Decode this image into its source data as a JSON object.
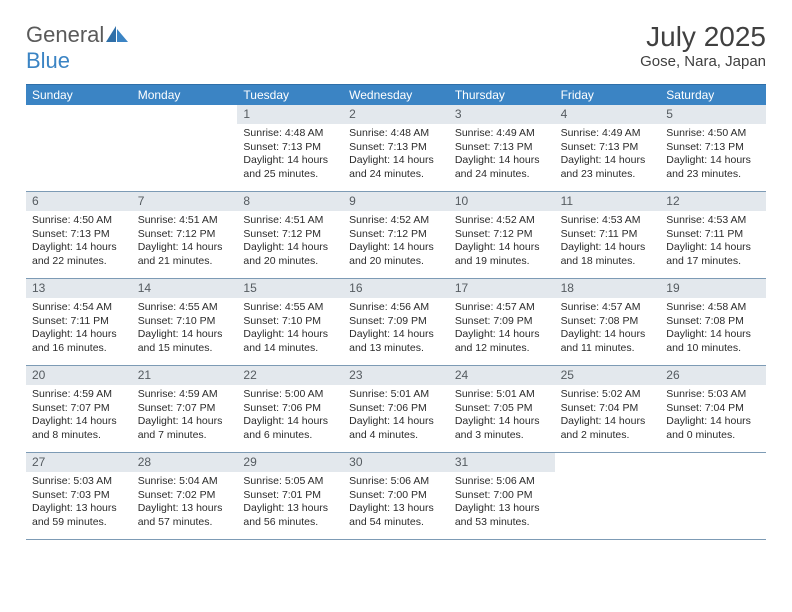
{
  "brand": {
    "part1": "General",
    "part2": "Blue"
  },
  "title": "July 2025",
  "location": "Gose, Nara, Japan",
  "day_headers": [
    "Sunday",
    "Monday",
    "Tuesday",
    "Wednesday",
    "Thursday",
    "Friday",
    "Saturday"
  ],
  "colors": {
    "header_bg": "#3b84c4",
    "header_border": "#2f6fa8",
    "row_divider": "#7d9bb5",
    "daynum_bg": "#e3e8ed",
    "text": "#2b2b2b",
    "title_text": "#404040"
  },
  "labels": {
    "sunrise": "Sunrise: ",
    "sunset": "Sunset: ",
    "daylight": "Daylight: "
  },
  "weeks": [
    [
      null,
      null,
      {
        "n": "1",
        "sunrise": "4:48 AM",
        "sunset": "7:13 PM",
        "daylight": "14 hours and 25 minutes."
      },
      {
        "n": "2",
        "sunrise": "4:48 AM",
        "sunset": "7:13 PM",
        "daylight": "14 hours and 24 minutes."
      },
      {
        "n": "3",
        "sunrise": "4:49 AM",
        "sunset": "7:13 PM",
        "daylight": "14 hours and 24 minutes."
      },
      {
        "n": "4",
        "sunrise": "4:49 AM",
        "sunset": "7:13 PM",
        "daylight": "14 hours and 23 minutes."
      },
      {
        "n": "5",
        "sunrise": "4:50 AM",
        "sunset": "7:13 PM",
        "daylight": "14 hours and 23 minutes."
      }
    ],
    [
      {
        "n": "6",
        "sunrise": "4:50 AM",
        "sunset": "7:13 PM",
        "daylight": "14 hours and 22 minutes."
      },
      {
        "n": "7",
        "sunrise": "4:51 AM",
        "sunset": "7:12 PM",
        "daylight": "14 hours and 21 minutes."
      },
      {
        "n": "8",
        "sunrise": "4:51 AM",
        "sunset": "7:12 PM",
        "daylight": "14 hours and 20 minutes."
      },
      {
        "n": "9",
        "sunrise": "4:52 AM",
        "sunset": "7:12 PM",
        "daylight": "14 hours and 20 minutes."
      },
      {
        "n": "10",
        "sunrise": "4:52 AM",
        "sunset": "7:12 PM",
        "daylight": "14 hours and 19 minutes."
      },
      {
        "n": "11",
        "sunrise": "4:53 AM",
        "sunset": "7:11 PM",
        "daylight": "14 hours and 18 minutes."
      },
      {
        "n": "12",
        "sunrise": "4:53 AM",
        "sunset": "7:11 PM",
        "daylight": "14 hours and 17 minutes."
      }
    ],
    [
      {
        "n": "13",
        "sunrise": "4:54 AM",
        "sunset": "7:11 PM",
        "daylight": "14 hours and 16 minutes."
      },
      {
        "n": "14",
        "sunrise": "4:55 AM",
        "sunset": "7:10 PM",
        "daylight": "14 hours and 15 minutes."
      },
      {
        "n": "15",
        "sunrise": "4:55 AM",
        "sunset": "7:10 PM",
        "daylight": "14 hours and 14 minutes."
      },
      {
        "n": "16",
        "sunrise": "4:56 AM",
        "sunset": "7:09 PM",
        "daylight": "14 hours and 13 minutes."
      },
      {
        "n": "17",
        "sunrise": "4:57 AM",
        "sunset": "7:09 PM",
        "daylight": "14 hours and 12 minutes."
      },
      {
        "n": "18",
        "sunrise": "4:57 AM",
        "sunset": "7:08 PM",
        "daylight": "14 hours and 11 minutes."
      },
      {
        "n": "19",
        "sunrise": "4:58 AM",
        "sunset": "7:08 PM",
        "daylight": "14 hours and 10 minutes."
      }
    ],
    [
      {
        "n": "20",
        "sunrise": "4:59 AM",
        "sunset": "7:07 PM",
        "daylight": "14 hours and 8 minutes."
      },
      {
        "n": "21",
        "sunrise": "4:59 AM",
        "sunset": "7:07 PM",
        "daylight": "14 hours and 7 minutes."
      },
      {
        "n": "22",
        "sunrise": "5:00 AM",
        "sunset": "7:06 PM",
        "daylight": "14 hours and 6 minutes."
      },
      {
        "n": "23",
        "sunrise": "5:01 AM",
        "sunset": "7:06 PM",
        "daylight": "14 hours and 4 minutes."
      },
      {
        "n": "24",
        "sunrise": "5:01 AM",
        "sunset": "7:05 PM",
        "daylight": "14 hours and 3 minutes."
      },
      {
        "n": "25",
        "sunrise": "5:02 AM",
        "sunset": "7:04 PM",
        "daylight": "14 hours and 2 minutes."
      },
      {
        "n": "26",
        "sunrise": "5:03 AM",
        "sunset": "7:04 PM",
        "daylight": "14 hours and 0 minutes."
      }
    ],
    [
      {
        "n": "27",
        "sunrise": "5:03 AM",
        "sunset": "7:03 PM",
        "daylight": "13 hours and 59 minutes."
      },
      {
        "n": "28",
        "sunrise": "5:04 AM",
        "sunset": "7:02 PM",
        "daylight": "13 hours and 57 minutes."
      },
      {
        "n": "29",
        "sunrise": "5:05 AM",
        "sunset": "7:01 PM",
        "daylight": "13 hours and 56 minutes."
      },
      {
        "n": "30",
        "sunrise": "5:06 AM",
        "sunset": "7:00 PM",
        "daylight": "13 hours and 54 minutes."
      },
      {
        "n": "31",
        "sunrise": "5:06 AM",
        "sunset": "7:00 PM",
        "daylight": "13 hours and 53 minutes."
      },
      null,
      null
    ]
  ]
}
